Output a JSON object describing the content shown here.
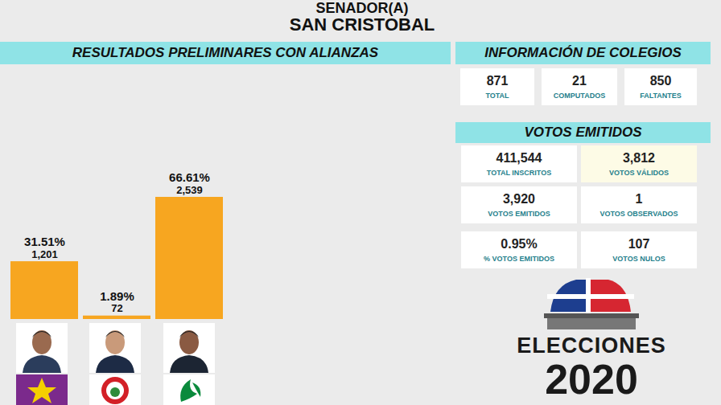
{
  "header": {
    "title": "SENADOR(A)",
    "subtitle": "SAN CRISTOBAL"
  },
  "chart_data": {
    "type": "bar",
    "title": "RESULTADOS PRELIMINARES CON ALIANZAS",
    "categories": [
      null,
      null,
      null
    ],
    "values": [
      1201,
      72,
      2539
    ],
    "value_labels": [
      "1,201",
      "72",
      "2,539"
    ],
    "shares": [
      31.51,
      1.89,
      66.61
    ],
    "share_labels": [
      "31.51%",
      "1.89%",
      "66.61%"
    ],
    "color": "#f7a620",
    "ylim": [
      0,
      2539
    ],
    "yticks": [],
    "tick_labels": false,
    "grid": false,
    "data_labels": true
  },
  "colegios": {
    "title": "INFORMACIÓN DE COLEGIOS",
    "items": [
      {
        "value": "871",
        "label": "TOTAL"
      },
      {
        "value": "21",
        "label": "COMPUTADOS"
      },
      {
        "value": "850",
        "label": "FALTANTES"
      }
    ]
  },
  "votos": {
    "title": "VOTOS EMITIDOS",
    "items": [
      {
        "value": "411,544",
        "label": "TOTAL INSCRITOS"
      },
      {
        "value": "3,812",
        "label": "VOTOS VÁLIDOS"
      },
      {
        "value": "3,920",
        "label": "VOTOS EMITIDOS"
      },
      {
        "value": "1",
        "label": "VOTOS OBSERVADOS"
      },
      {
        "value": "0.95%",
        "label": "% VOTOS EMITIDOS"
      },
      {
        "value": "107",
        "label": "VOTOS NULOS"
      }
    ]
  },
  "logo": {
    "line1": "ELECCIONES",
    "line2": "2020"
  }
}
